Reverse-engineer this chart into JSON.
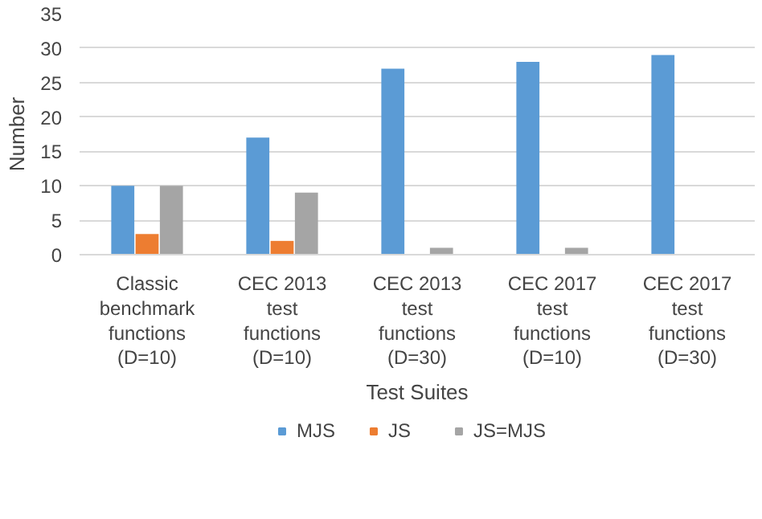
{
  "chart_data": {
    "type": "bar",
    "xlabel": "Test Suites",
    "ylabel": "Number",
    "categories": [
      "Classic\nbenchmark\nfunctions\n(D=10)",
      "CEC 2013\ntest\nfunctions\n(D=10)",
      "CEC 2013\ntest\nfunctions\n(D=30)",
      "CEC 2017\ntest\nfunctions\n(D=10)",
      "CEC 2017\ntest\nfunctions\n(D=30)"
    ],
    "series": [
      {
        "name": "MJS",
        "color": "#5b9bd5",
        "values": [
          10,
          17,
          27,
          28,
          29
        ]
      },
      {
        "name": "JS",
        "color": "#ed7d31",
        "values": [
          3,
          2,
          0,
          0,
          0
        ]
      },
      {
        "name": "JS=MJS",
        "color": "#a5a5a5",
        "values": [
          10,
          9,
          1,
          1,
          0
        ]
      }
    ],
    "ylim": [
      0,
      35
    ],
    "yticks": [
      0,
      5,
      10,
      15,
      20,
      25,
      30,
      35
    ],
    "grid": "y",
    "legend": "bottom"
  }
}
